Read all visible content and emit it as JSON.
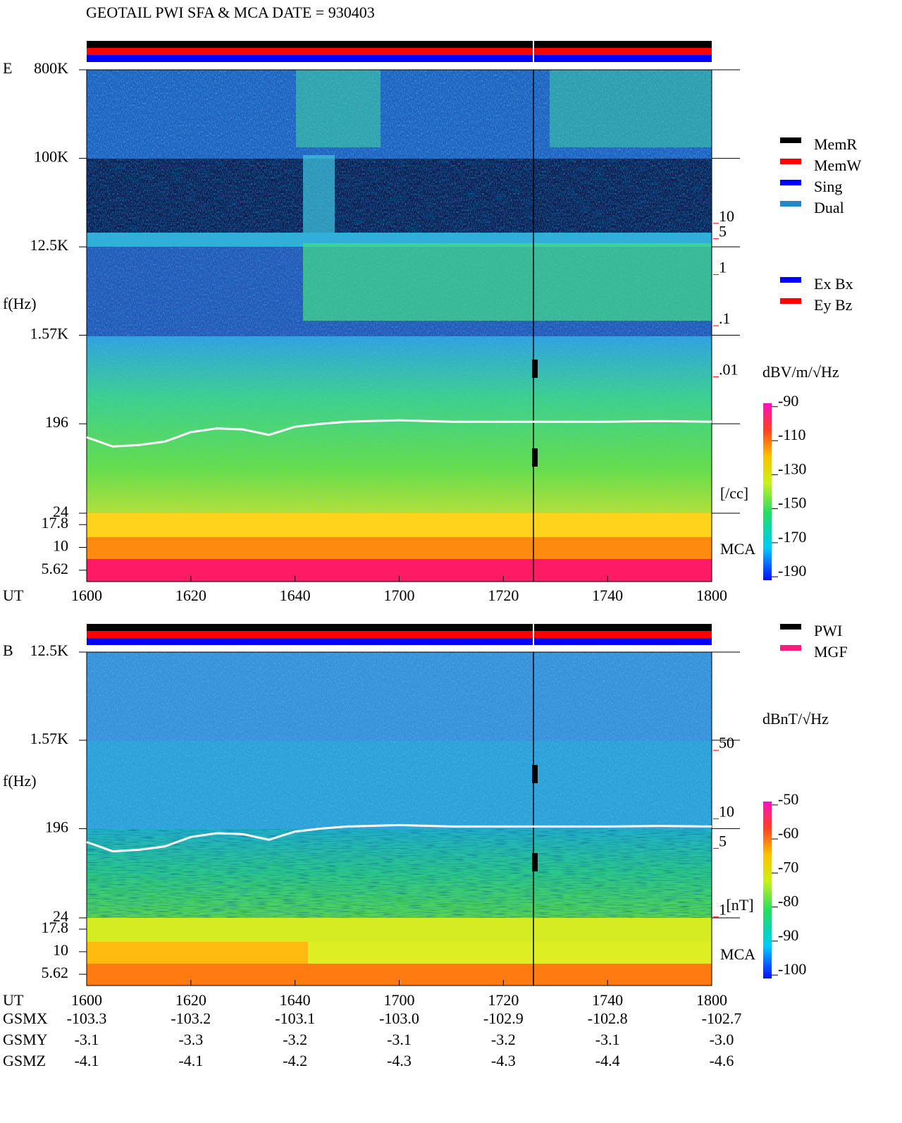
{
  "title": "GEOTAIL  PWI SFA & MCA   DATE = 930403",
  "chart_data": [
    {
      "type": "spectrogram",
      "panel": "E",
      "ylabel": "f(Hz)",
      "xlabel": "UT",
      "yscale": "log",
      "ylim": [
        24,
        800000
      ],
      "yticks": [
        {
          "value": 800000,
          "label": "800K"
        },
        {
          "value": 100000,
          "label": "100K"
        },
        {
          "value": 12500,
          "label": "12.5K"
        },
        {
          "value": 1570,
          "label": "1.57K"
        },
        196,
        24
      ],
      "mca_label": "MCA",
      "mca_channels": [
        17.8,
        10,
        5.62
      ],
      "xlim": [
        0,
        120
      ],
      "xticks": [
        {
          "value": 0,
          "label": "1600"
        },
        {
          "value": 20,
          "label": "1620"
        },
        {
          "value": 40,
          "label": "1640"
        },
        {
          "value": 60,
          "label": "1700"
        },
        {
          "value": 80,
          "label": "1720"
        },
        {
          "value": 100,
          "label": "1740"
        },
        {
          "value": 120,
          "label": "1800"
        }
      ],
      "y2scale": "log",
      "y2lim": [
        1e-06,
        10000
      ],
      "y2ticks": [
        10,
        5,
        1,
        {
          "value": 0.1,
          "label": ".1"
        },
        {
          "value": 0.01,
          "label": ".01"
        }
      ],
      "y2label": "[/cc]",
      "y2color": "#ff0000",
      "colorbar": {
        "label": "dBV/m/√Hz",
        "lim": [
          -192,
          -88
        ],
        "ticks": [
          -90,
          -110,
          -130,
          -150,
          -170,
          -190
        ]
      },
      "legend_groups": [
        [
          {
            "name": "MemR",
            "color": "#000000"
          },
          {
            "name": "MemW",
            "color": "#ff0000"
          },
          {
            "name": "Sing",
            "color": "#0000ff"
          },
          {
            "name": "Dual",
            "color": "#2288cc"
          }
        ],
        [
          {
            "name": "Ex Bx",
            "color": "#0000ff"
          },
          {
            "name": "Ey Bz",
            "color": "#ff0000"
          }
        ]
      ],
      "series": [
        {
          "color": "#ffffff",
          "x": [
            0,
            5,
            10,
            15,
            20,
            25,
            30,
            35,
            40,
            45,
            50,
            60,
            70,
            80,
            90,
            100,
            110,
            120
          ],
          "values": [
            143,
            115,
            119,
            129,
            161,
            176,
            172,
            151,
            183,
            196,
            206,
            213,
            206,
            206,
            206,
            206,
            209,
            206
          ]
        }
      ]
    },
    {
      "type": "spectrogram",
      "panel": "B",
      "ylabel": "f(Hz)",
      "xlabel": "UT",
      "yscale": "log",
      "ylim": [
        24,
        12500
      ],
      "yticks": [
        {
          "value": 12500,
          "label": "12.5K"
        },
        {
          "value": 1570,
          "label": "1.57K"
        },
        196,
        24
      ],
      "mca_label": "MCA",
      "mca_channels": [
        17.8,
        10,
        5.62
      ],
      "xlim": [
        0,
        120
      ],
      "xticks": [
        {
          "value": 0,
          "label": "1600"
        },
        {
          "value": 20,
          "label": "1620"
        },
        {
          "value": 40,
          "label": "1640"
        },
        {
          "value": 60,
          "label": "1700"
        },
        {
          "value": 80,
          "label": "1720"
        },
        {
          "value": 100,
          "label": "1740"
        },
        {
          "value": 120,
          "label": "1800"
        }
      ],
      "y2scale": "log",
      "y2lim": [
        0.2,
        500
      ],
      "y2ticks": [
        50,
        10,
        5,
        1
      ],
      "y2label": "[nT]",
      "y2color": "#ff0000",
      "colorbar": {
        "label": "dBnT/√Hz",
        "lim": [
          -101,
          -49
        ],
        "ticks": [
          -50,
          -60,
          -70,
          -80,
          -90,
          -100
        ]
      },
      "legend_groups": [
        [
          {
            "name": "PWI",
            "color": "#000000"
          },
          {
            "name": "MGF",
            "color": "#ff1a80"
          }
        ]
      ],
      "series": [
        {
          "color": "#ffffff",
          "x": [
            0,
            5,
            10,
            15,
            20,
            25,
            30,
            35,
            40,
            45,
            50,
            60,
            70,
            80,
            90,
            100,
            110,
            120
          ],
          "values": [
            143,
            115,
            119,
            129,
            161,
            176,
            172,
            151,
            183,
            196,
            206,
            213,
            206,
            206,
            206,
            206,
            209,
            206
          ]
        }
      ]
    }
  ],
  "orbit": {
    "rows": [
      {
        "label": "GSMX",
        "values": [
          "-103.3",
          "-103.2",
          "-103.1",
          "-103.0",
          "-102.9",
          "-102.8",
          "-102.7"
        ]
      },
      {
        "label": "GSMY",
        "values": [
          "-3.1",
          "-3.3",
          "-3.2",
          "-3.1",
          "-3.2",
          "-3.1",
          "-3.0"
        ]
      },
      {
        "label": "GSMZ",
        "values": [
          "-4.1",
          "-4.1",
          "-4.2",
          "-4.3",
          "-4.3",
          "-4.4",
          "-4.6"
        ]
      }
    ]
  }
}
